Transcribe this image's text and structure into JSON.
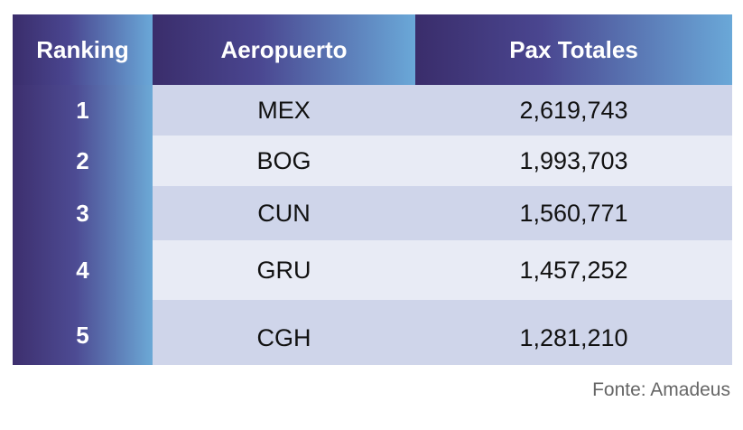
{
  "table": {
    "headers": {
      "ranking": "Ranking",
      "airport": "Aeropuerto",
      "pax": "Pax Totales"
    },
    "rows": [
      {
        "rank": "1",
        "airport": "MEX",
        "pax": "2,619,743"
      },
      {
        "rank": "2",
        "airport": "BOG",
        "pax": "1,993,703"
      },
      {
        "rank": "3",
        "airport": "CUN",
        "pax": "1,560,771"
      },
      {
        "rank": "4",
        "airport": "GRU",
        "pax": "1,457,252"
      },
      {
        "rank": "5",
        "airport": "CGH",
        "pax": "1,281,210"
      }
    ]
  },
  "source": "Fonte: Amadeus",
  "colors": {
    "header_dark": "#3a2d6b",
    "header_light": "#6aa8d8",
    "row_dark": "#cfd5ea",
    "row_light": "#e8ebf5"
  }
}
